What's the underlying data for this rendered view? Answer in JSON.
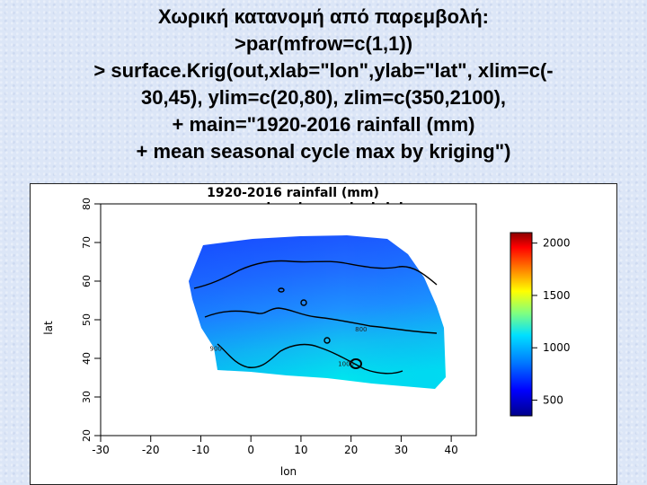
{
  "slide": {
    "title": "Χωρική κατανομή από παρεμβολή:",
    "code_lines": [
      ">par(mfrow=c(1,1))",
      "> surface.Krig(out,xlab=\"lon\",ylab=\"lat\", xlim=c(-",
      "30,45), ylim=c(20,80), zlim=c(350,2100),",
      "+ main=\"1920-2016 rainfall (mm)",
      "+ mean seasonal cycle max by kriging\")"
    ]
  },
  "chart_data": {
    "type": "heatmap",
    "title": "1920-2016 rainfall (mm)",
    "subtitle": "mean seasonal cycle max by kriging",
    "xlabel": "lon",
    "ylabel": "lat",
    "xlim": [
      -30,
      45
    ],
    "ylim": [
      20,
      80
    ],
    "x_ticks": [
      -30,
      -20,
      -10,
      0,
      10,
      20,
      30,
      40
    ],
    "y_ticks": [
      20,
      30,
      40,
      50,
      60,
      70,
      80
    ],
    "colorbar": {
      "zlim": [
        350,
        2100
      ],
      "ticks": [
        500,
        1000,
        1500,
        2000
      ],
      "palette": [
        "#00008b",
        "#0000ff",
        "#0080ff",
        "#00e0ff",
        "#80ff80",
        "#ffff00",
        "#ff8000",
        "#ff0000",
        "#8b0000"
      ]
    },
    "contour_labels": [
      {
        "text": "800",
        "x": 22,
        "y": 47
      },
      {
        "text": "900",
        "x": -7,
        "y": 42
      },
      {
        "text": "1000",
        "x": 19,
        "y": 38
      }
    ],
    "grid": false,
    "legend": "right"
  }
}
